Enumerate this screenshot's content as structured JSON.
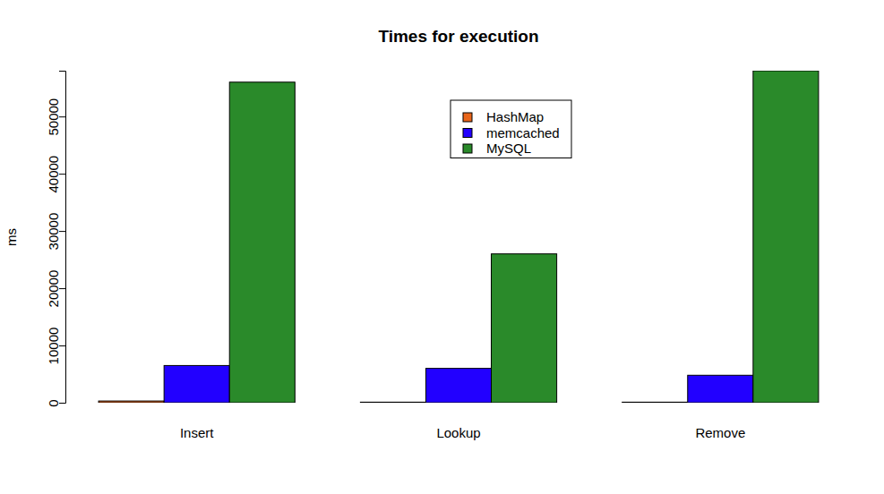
{
  "chart_data": {
    "type": "bar",
    "title": "Times for execution",
    "y_label": "ms",
    "categories": [
      "Insert",
      "Lookup",
      "Remove"
    ],
    "series": [
      {
        "name": "HashMap",
        "color": "#e8651a",
        "values": [
          300,
          100,
          100
        ]
      },
      {
        "name": "memcached",
        "color": "#2200ff",
        "values": [
          6500,
          6000,
          4800
        ]
      },
      {
        "name": "MySQL",
        "color": "#2a8a2a",
        "values": [
          56000,
          26000,
          58000
        ]
      }
    ],
    "ylim": [
      0,
      58000
    ],
    "yticks": [
      0,
      10000,
      20000,
      30000,
      40000,
      50000
    ],
    "grid": false,
    "legend": "top"
  }
}
